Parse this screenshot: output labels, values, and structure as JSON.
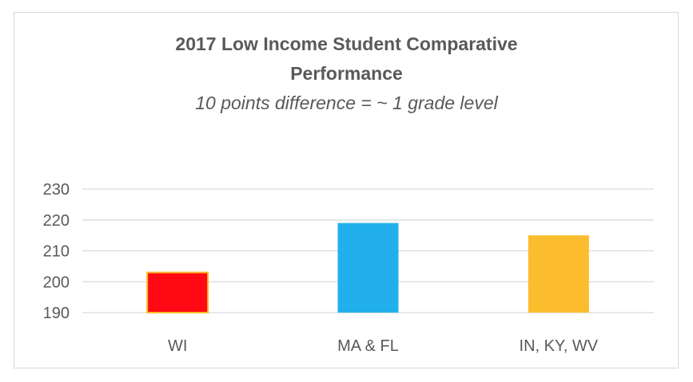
{
  "chart_data": {
    "type": "bar",
    "title": "2017 Low Income Student Comparative Performance",
    "title_lines": [
      "2017 Low Income Student Comparative",
      "Performance"
    ],
    "subtitle": "10 points difference = ~ 1 grade level",
    "categories": [
      "WI",
      "MA & FL",
      "IN, KY, WV"
    ],
    "values": [
      203,
      219,
      215
    ],
    "bar_colors": [
      "#ff0a14",
      "#22b0ec",
      "#fbbd2d"
    ],
    "ylim": [
      190,
      230
    ],
    "yticks": [
      190,
      200,
      210,
      220,
      230
    ],
    "grid": true,
    "legend": "none",
    "xlabel": "",
    "ylabel": ""
  }
}
